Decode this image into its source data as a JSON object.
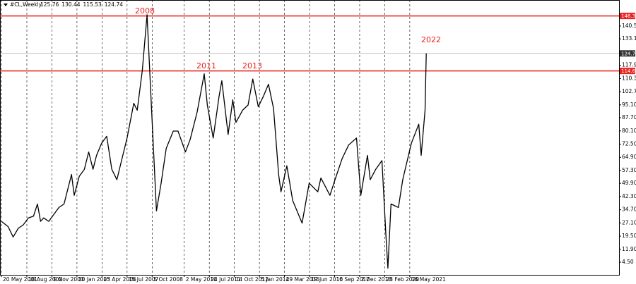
{
  "chart_data": {
    "type": "line",
    "symbol": "#CL,Weekly",
    "ohlc": [
      125.76,
      130.44,
      115.53,
      124.74
    ],
    "annotations": [
      "2008",
      "2011",
      "2013",
      "2022"
    ],
    "series": [
      {
        "color": "#000000",
        "x": [
          "2001-05-20",
          "2001-09-16",
          "2001-12-16",
          "2002-03-17",
          "2002-06-16",
          "2002-09-15",
          "2002-12-15",
          "2003-02-23",
          "2003-04-20",
          "2003-06-15",
          "2003-09-14",
          "2003-12-14",
          "2004-03-14",
          "2004-06-13",
          "2004-10-24",
          "2004-12-12",
          "2005-03-13",
          "2005-06-12",
          "2005-08-28",
          "2005-11-13",
          "2006-01-15",
          "2006-04-16",
          "2006-07-16",
          "2006-10-15",
          "2007-01-14",
          "2007-04-15",
          "2007-07-15",
          "2007-11-11",
          "2008-01-13",
          "2008-04-13",
          "2008-07-06",
          "2008-09-14",
          "2008-12-21",
          "2009-03-15",
          "2009-06-14",
          "2009-10-18",
          "2010-01-10",
          "2010-05-23",
          "2010-08-15",
          "2010-12-19",
          "2011-04-24",
          "2011-06-19",
          "2011-10-02",
          "2012-01-15",
          "2012-03-04",
          "2012-06-24",
          "2012-09-16",
          "2012-11-11",
          "2013-03-10",
          "2013-06-16",
          "2013-09-08",
          "2013-12-15",
          "2014-03-16",
          "2014-06-15",
          "2014-09-14",
          "2014-12-14",
          "2015-01-25",
          "2015-05-10",
          "2015-08-23",
          "2016-02-07",
          "2016-06-12",
          "2016-11-13",
          "2017-01-08",
          "2017-06-18",
          "2017-09-17",
          "2018-01-21",
          "2018-05-20",
          "2018-10-07",
          "2018-12-23",
          "2019-04-21",
          "2019-06-09",
          "2019-09-15",
          "2020-01-05",
          "2020-03-15",
          "2020-04-19",
          "2020-06-14",
          "2020-10-25",
          "2021-01-10",
          "2021-06-13",
          "2021-10-24",
          "2021-12-05",
          "2022-02-13",
          "2022-03-06"
        ],
        "values": [
          28,
          25,
          19,
          24,
          26,
          30,
          31,
          38,
          28,
          30,
          28,
          32,
          36,
          38,
          55,
          43,
          54,
          58,
          68,
          58,
          66,
          73,
          77,
          58,
          52,
          64,
          76,
          96,
          92,
          115,
          147,
          100,
          34,
          50,
          70,
          80,
          80,
          68,
          75,
          91,
          113,
          95,
          76,
          100,
          109,
          78,
          98,
          85,
          92,
          95,
          110,
          94,
          100,
          107,
          93,
          55,
          45,
          60,
          40,
          27,
          50,
          45,
          53,
          43,
          52,
          64,
          72,
          76,
          43,
          66,
          52,
          58,
          63,
          20,
          1,
          38,
          36,
          52,
          73,
          84,
          66,
          92,
          124.74
        ]
      }
    ],
    "xlim": [
      "2001-04-25",
      "2031-08-13"
    ],
    "ylim": [
      -2.8,
      155.5
    ],
    "xticks": [
      {
        "value": "2001-05-20",
        "label": "20 May 2001"
      },
      {
        "value": "2002-08-18",
        "label": "18 Aug 2002"
      },
      {
        "value": "2003-11-09",
        "label": "9 Nov 2003"
      },
      {
        "value": "2005-01-30",
        "label": "30 Jan 2005"
      },
      {
        "value": "2006-04-23",
        "label": "23 Apr 2006"
      },
      {
        "value": "2007-07-15",
        "label": "15 Jul 2007"
      },
      {
        "value": "2008-10-05",
        "label": "5 Oct 2008"
      },
      {
        "value": "2010-05-02",
        "label": "2 May 2010"
      },
      {
        "value": "2011-07-24",
        "label": "24 Jul 2011"
      },
      {
        "value": "2012-10-14",
        "label": "14 Oct 2012"
      },
      {
        "value": "2014-01-05",
        "label": "5 Jan 2014"
      },
      {
        "value": "2015-03-29",
        "label": "29 Mar 2015"
      },
      {
        "value": "2016-06-19",
        "label": "19 Jun 2016"
      },
      {
        "value": "2017-09-10",
        "label": "10 Sep 2017"
      },
      {
        "value": "2018-12-02",
        "label": "2 Dec 2018"
      },
      {
        "value": "2020-02-23",
        "label": "23 Feb 2020"
      },
      {
        "value": "2021-05-16",
        "label": "16 May 2021"
      }
    ],
    "yticks": [
      {
        "value": 140.5,
        "label": "140.50"
      },
      {
        "value": 133.1,
        "label": "133.10"
      },
      {
        "value": 117.9,
        "label": "117.90"
      },
      {
        "value": 110.3,
        "label": "110.30"
      },
      {
        "value": 102.7,
        "label": "102.70"
      },
      {
        "value": 95.1,
        "label": "95.10"
      },
      {
        "value": 87.7,
        "label": "87.70"
      },
      {
        "value": 80.1,
        "label": "80.10"
      },
      {
        "value": 72.5,
        "label": "72.50"
      },
      {
        "value": 64.9,
        "label": "64.90"
      },
      {
        "value": 57.3,
        "label": "57.30"
      },
      {
        "value": 49.9,
        "label": "49.90"
      },
      {
        "value": 42.3,
        "label": "42.30"
      },
      {
        "value": 34.7,
        "label": "34.70"
      },
      {
        "value": 27.1,
        "label": "27.10"
      },
      {
        "value": 19.5,
        "label": "19.50"
      },
      {
        "value": 11.9,
        "label": "11.90"
      },
      {
        "value": 4.5,
        "label": "4.50"
      }
    ],
    "price_lines": [
      {
        "value": 146.32,
        "color": "#e8231f"
      },
      {
        "value": 124.74,
        "color": "#9a9a9a"
      },
      {
        "value": 114.64,
        "color": "#e8231f"
      }
    ],
    "grid": true
  }
}
